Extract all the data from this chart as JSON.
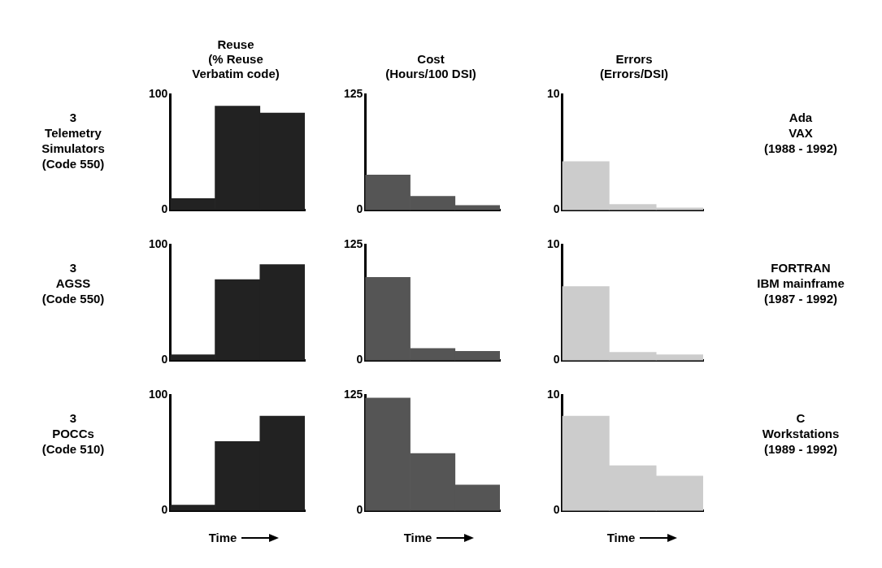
{
  "chart_data": [
    {
      "type": "bar",
      "title": "Reuse\n(% Reuse\nVerbatim code)",
      "categories": [
        null,
        null,
        null
      ],
      "values": [
        10,
        90,
        84
      ],
      "color": "#222222",
      "ylim": [
        0,
        100
      ],
      "yticks": [
        0,
        100
      ],
      "tick_labels": "y",
      "annotations": [
        "3\nTelemetry\nSimulators\n(Code 550)"
      ]
    },
    {
      "type": "bar",
      "title": "Cost\n(Hours/100 DSI)",
      "categories": [
        null,
        null,
        null
      ],
      "values": [
        38,
        15,
        5
      ],
      "color": "#555555",
      "ylim": [
        0,
        125
      ],
      "yticks": [
        0,
        125
      ],
      "tick_labels": "y"
    },
    {
      "type": "bar",
      "title": "Errors\n(Errors/DSI)",
      "categories": [
        null,
        null,
        null
      ],
      "values": [
        4.2,
        0.5,
        0.2
      ],
      "color": "#cccccc",
      "ylim": [
        0,
        10
      ],
      "yticks": [
        0,
        10
      ],
      "tick_labels": "y",
      "annotations": [
        "Ada\nVAX\n(1988 - 1992)"
      ]
    },
    {
      "type": "bar",
      "categories": [
        null,
        null,
        null
      ],
      "values": [
        5,
        70,
        83
      ],
      "color": "#222222",
      "ylim": [
        0,
        100
      ],
      "yticks": [
        0,
        100
      ],
      "tick_labels": "y",
      "annotations": [
        "3\nAGSS\n(Code 550)"
      ]
    },
    {
      "type": "bar",
      "categories": [
        null,
        null,
        null
      ],
      "values": [
        90,
        13,
        10
      ],
      "color": "#555555",
      "ylim": [
        0,
        125
      ],
      "yticks": [
        0,
        125
      ],
      "tick_labels": "y"
    },
    {
      "type": "bar",
      "categories": [
        null,
        null,
        null
      ],
      "values": [
        6.4,
        0.7,
        0.5
      ],
      "color": "#cccccc",
      "ylim": [
        0,
        10
      ],
      "yticks": [
        0,
        10
      ],
      "tick_labels": "y",
      "annotations": [
        "FORTRAN\nIBM mainframe\n(1987 - 1992)"
      ]
    },
    {
      "type": "bar",
      "xlabel": "Time",
      "categories": [
        null,
        null,
        null
      ],
      "values": [
        5,
        60,
        82
      ],
      "color": "#222222",
      "ylim": [
        0,
        100
      ],
      "yticks": [
        0,
        100
      ],
      "tick_labels": "y",
      "annotations": [
        "3\nPOCCs\n(Code 510)"
      ]
    },
    {
      "type": "bar",
      "xlabel": "Time",
      "categories": [
        null,
        null,
        null
      ],
      "values": [
        122,
        62,
        28
      ],
      "color": "#555555",
      "ylim": [
        0,
        125
      ],
      "yticks": [
        0,
        125
      ],
      "tick_labels": "y"
    },
    {
      "type": "bar",
      "xlabel": "Time",
      "categories": [
        null,
        null,
        null
      ],
      "values": [
        8.2,
        3.9,
        3.0
      ],
      "color": "#cccccc",
      "ylim": [
        0,
        10
      ],
      "yticks": [
        0,
        10
      ],
      "tick_labels": "y",
      "annotations": [
        "C\nWorkstations\n(1989 - 1992)"
      ]
    }
  ]
}
